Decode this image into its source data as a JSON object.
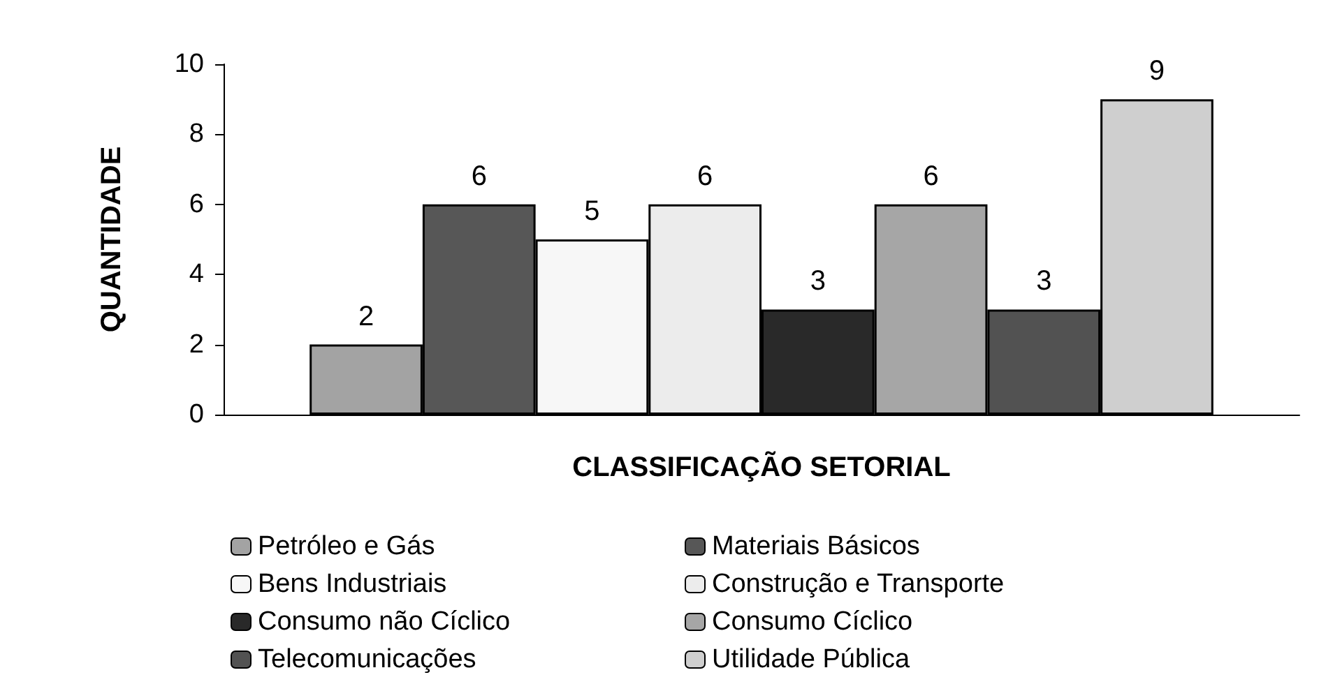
{
  "chart_data": {
    "type": "bar",
    "xlabel": "CLASSIFICAÇÃO SETORIAL",
    "ylabel": "QUANTIDADE",
    "categories": [
      null
    ],
    "series": [
      {
        "name": "Petróleo e Gás",
        "color": "#a3a3a3",
        "values": [
          2
        ]
      },
      {
        "name": "Materiais Básicos",
        "color": "#575757",
        "values": [
          6
        ]
      },
      {
        "name": "Bens Industriais",
        "color": "#f7f7f7",
        "values": [
          5
        ]
      },
      {
        "name": "Construção e Transporte",
        "color": "#ececec",
        "values": [
          6
        ]
      },
      {
        "name": "Consumo não Cíclico",
        "color": "#292929",
        "values": [
          3
        ]
      },
      {
        "name": "Consumo Cíclico",
        "color": "#a6a6a6",
        "values": [
          6
        ]
      },
      {
        "name": "Telecomunicações",
        "color": "#525252",
        "values": [
          3
        ]
      },
      {
        "name": "Utilidade Pública",
        "color": "#cfcfcf",
        "values": [
          9
        ]
      }
    ],
    "ylim": [
      0,
      10
    ],
    "yticks": [
      0,
      2,
      4,
      6,
      8,
      10
    ],
    "grid": false,
    "legend": "bottom",
    "data_labels": true
  }
}
